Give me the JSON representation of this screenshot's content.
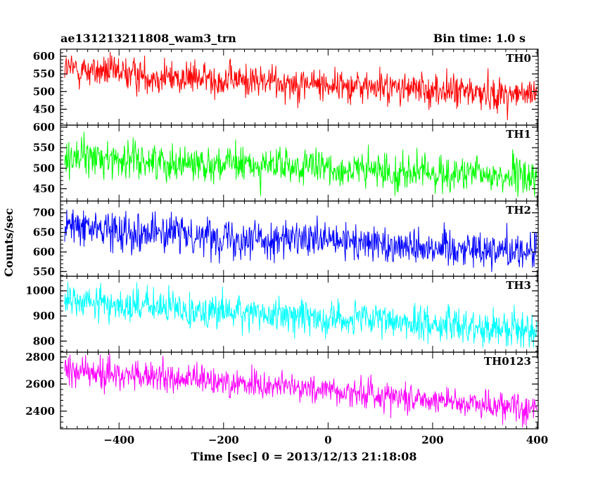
{
  "header": {
    "left_title": "ae131213211808_wam3_trn",
    "right_title": "Bin time: 1.0 s"
  },
  "chart_data": {
    "type": "line",
    "title": "ae131213211808_wam3_trn",
    "subtitle": "Bin time: 1.0 s",
    "xlabel": "Time [sec] 0 = 2013/12/13 21:18:08",
    "ylabel": "Counts/sec",
    "xlim": [
      -512,
      402
    ],
    "x_ticks": [
      -400,
      -200,
      0,
      200,
      400
    ],
    "x_tick_labels": [
      "−400",
      "−200",
      "0",
      "200",
      "400"
    ],
    "x_start": -504,
    "x_end": 399,
    "bin_time_sec": 1.0,
    "grid": false,
    "panels": [
      {
        "name": "TH0",
        "color": "#ff0000",
        "ylim": [
          405,
          620
        ],
        "y_ticks": [
          450,
          500,
          550,
          600
        ],
        "y_tick_labels": [
          "450",
          "500",
          "550",
          "600"
        ],
        "trend": [
          [
            -504,
            565
          ],
          [
            -300,
            540
          ],
          [
            -100,
            528
          ],
          [
            100,
            512
          ],
          [
            399,
            488
          ]
        ],
        "noise_sd": 24,
        "min": 400,
        "max": 622
      },
      {
        "name": "TH1",
        "color": "#00ff00",
        "ylim": [
          420,
          605
        ],
        "y_ticks": [
          450,
          500,
          550,
          600
        ],
        "y_tick_labels": [
          "450",
          "500",
          "550",
          "600"
        ],
        "trend": [
          [
            -504,
            530
          ],
          [
            -300,
            515
          ],
          [
            -100,
            505
          ],
          [
            100,
            492
          ],
          [
            399,
            478
          ]
        ],
        "noise_sd": 22,
        "min": 420,
        "max": 600
      },
      {
        "name": "TH2",
        "color": "#0000ff",
        "ylim": [
          538,
          730
        ],
        "y_ticks": [
          550,
          600,
          650,
          700
        ],
        "y_tick_labels": [
          "550",
          "600",
          "650",
          "700"
        ],
        "trend": [
          [
            -504,
            665
          ],
          [
            -300,
            648
          ],
          [
            -100,
            632
          ],
          [
            100,
            620
          ],
          [
            399,
            602
          ]
        ],
        "noise_sd": 24,
        "min": 540,
        "max": 730
      },
      {
        "name": "TH3",
        "color": "#00ffff",
        "ylim": [
          756,
          1058
        ],
        "y_ticks": [
          800,
          900,
          1000
        ],
        "y_tick_labels": [
          "800",
          "900",
          "1000"
        ],
        "trend": [
          [
            -504,
            960
          ],
          [
            -300,
            930
          ],
          [
            -100,
            905
          ],
          [
            100,
            880
          ],
          [
            399,
            845
          ]
        ],
        "noise_sd": 35,
        "min": 775,
        "max": 1055
      },
      {
        "name": "TH0123",
        "color": "#ff00ff",
        "ylim": [
          2270,
          2835
        ],
        "y_ticks": [
          2400,
          2600,
          2800
        ],
        "y_tick_labels": [
          "2400",
          "2600",
          "2800"
        ],
        "trend": [
          [
            -504,
            2700
          ],
          [
            -300,
            2640
          ],
          [
            -100,
            2590
          ],
          [
            100,
            2520
          ],
          [
            399,
            2420
          ]
        ],
        "noise_sd": 55,
        "min": 2280,
        "max": 2830
      }
    ]
  }
}
